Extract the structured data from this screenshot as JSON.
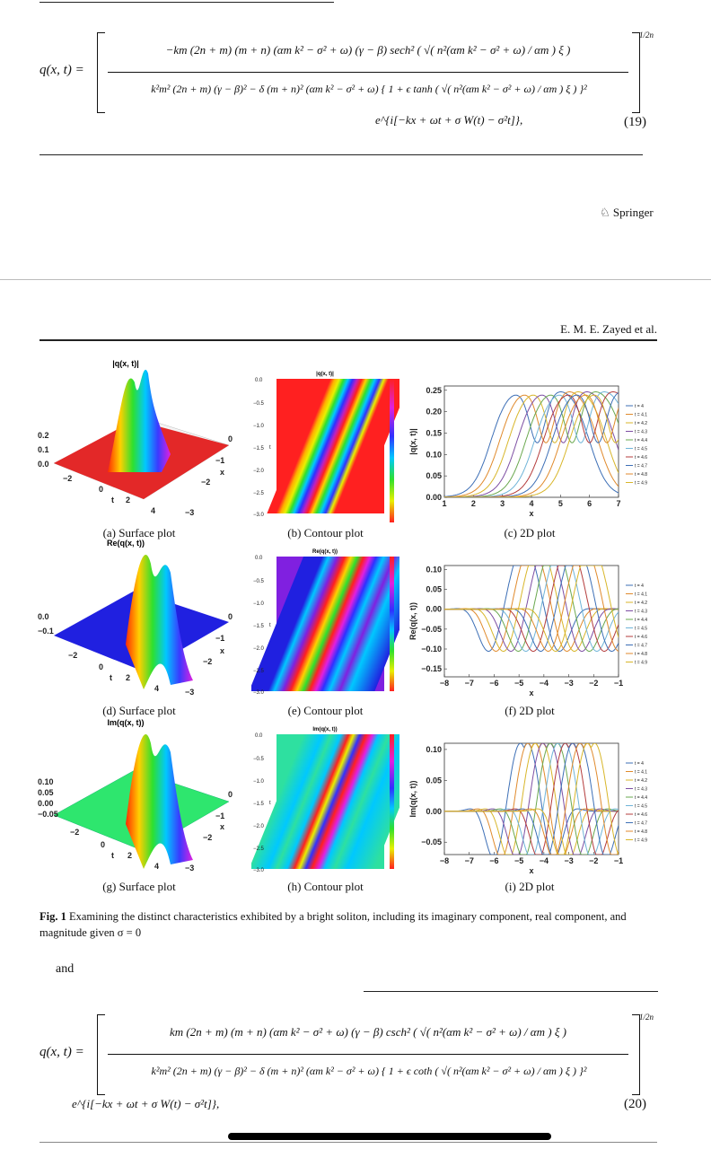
{
  "eq19": {
    "lhs": "q(x, t) =",
    "numerator": "−km (2n + m) (m + n) (αm k² − σ² + ω) (γ − β) sech² ( √( n²(αm k² − σ² + ω) / αm ) ξ )",
    "denominator": "k²m² (2n + m) (γ − β)² − δ (m + n)² (αm k² − σ² + ω) { 1 + ϵ tanh ( √( n²(αm k² − σ² + ω) / αm ) ξ ) }²",
    "exponent": "1/2n",
    "phase": "e^{i[−kx + ωt + σ W(t) − σ²t]},",
    "number": "(19)"
  },
  "publisher": "Springer",
  "running_head": "E. M. E. Zayed et al.",
  "figure": {
    "panels": [
      {
        "label": "(a) Surface plot",
        "title": "|q(x, t)|"
      },
      {
        "label": "(b) Contour plot",
        "title": "|q(x, t)|"
      },
      {
        "label": "(c) 2D plot",
        "ylabel": "|q(x, t)|",
        "xlabel": "x"
      },
      {
        "label": "(d) Surface plot",
        "title": "Re(q(x, t))"
      },
      {
        "label": "(e) Contour plot",
        "title": "Re(q(x, t))"
      },
      {
        "label": "(f) 2D plot",
        "ylabel": "Re(q(x, t))",
        "xlabel": "x"
      },
      {
        "label": "(g) Surface plot",
        "title": "Im(q(x, t))"
      },
      {
        "label": "(h) Contour plot",
        "title": "Im(q(x, t))"
      },
      {
        "label": "(i) 2D plot",
        "ylabel": "Im(q(x, t))",
        "xlabel": "x"
      }
    ],
    "caption_label": "Fig. 1",
    "caption_text": "Examining the distinct characteristics exhibited by a bright soliton, including its imaginary component, real component, and magnitude given σ = 0"
  },
  "legend_entries": [
    "t = 4",
    "t = 4.1",
    "t = 4.2",
    "t = 4.3",
    "t = 4.4",
    "t = 4.5",
    "t = 4.6",
    "t = 4.7",
    "t = 4.8",
    "t = 4.9"
  ],
  "legend_colors": [
    "#3d6fb6",
    "#e08a2c",
    "#d8b62a",
    "#7d4ea3",
    "#6aa84f",
    "#6fb4d8",
    "#b43c3c",
    "#3d6fb6",
    "#e08a2c",
    "#d8b62a"
  ],
  "and_text": "and",
  "eq20": {
    "lhs": "q(x, t) =",
    "numerator": "km (2n + m) (m + n) (αm k² − σ² + ω) (γ − β) csch² ( √( n²(αm k² − σ² + ω) / αm ) ξ )",
    "denominator": "k²m² (2n + m) (γ − β)² − δ (m + n)² (αm k² − σ² + ω) { 1 + ϵ coth ( √( n²(αm k² − σ² + ω) / αm ) ξ ) }²",
    "exponent": "1/2n",
    "phase": "e^{i[−kx + ωt + σ W(t) − σ²t]},",
    "number": "(20)"
  },
  "chart_data": [
    {
      "type": "line",
      "panel": "c",
      "ylabel": "|q(x, t)|",
      "xlabel": "x",
      "xlim": [
        1,
        7
      ],
      "ylim": [
        0,
        0.26
      ],
      "xticks": [
        1,
        2,
        3,
        4,
        5,
        6,
        7
      ],
      "yticks": [
        0.0,
        0.05,
        0.1,
        0.15,
        0.2,
        0.25
      ],
      "series_names": [
        "t = 4",
        "t = 4.1",
        "t = 4.2",
        "t = 4.3",
        "t = 4.4",
        "t = 4.5",
        "t = 4.6",
        "t = 4.7",
        "t = 4.8",
        "t = 4.9"
      ]
    },
    {
      "type": "line",
      "panel": "f",
      "ylabel": "Re(q(x, t))",
      "xlabel": "x",
      "xlim": [
        -8,
        -1
      ],
      "ylim": [
        -0.17,
        0.11
      ],
      "xticks": [
        -8,
        -7,
        -6,
        -5,
        -4,
        -3,
        -2,
        -1
      ],
      "yticks": [
        -0.15,
        -0.1,
        -0.05,
        0.0,
        0.05,
        0.1
      ],
      "series_names": [
        "t = 4",
        "t = 4.1",
        "t = 4.2",
        "t = 4.3",
        "t = 4.4",
        "t = 4.5",
        "t = 4.6",
        "t = 4.7",
        "t = 4.8",
        "t = 4.9"
      ]
    },
    {
      "type": "line",
      "panel": "i",
      "ylabel": "Im(q(x, t))",
      "xlabel": "x",
      "xlim": [
        -8,
        -1
      ],
      "ylim": [
        -0.07,
        0.11
      ],
      "xticks": [
        -8,
        -7,
        -6,
        -5,
        -4,
        -3,
        -2,
        -1
      ],
      "yticks": [
        -0.05,
        0.0,
        0.05,
        0.1
      ],
      "series_names": [
        "t = 4",
        "t = 4.1",
        "t = 4.2",
        "t = 4.3",
        "t = 4.4",
        "t = 4.5",
        "t = 4.6",
        "t = 4.7",
        "t = 4.8",
        "t = 4.9"
      ]
    }
  ]
}
